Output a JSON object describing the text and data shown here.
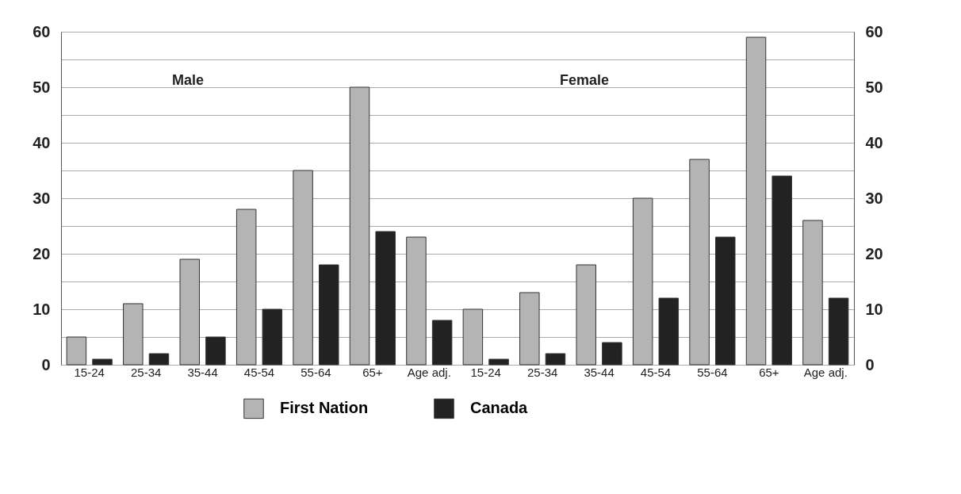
{
  "chart_data": {
    "type": "bar",
    "categories": [
      "15-24",
      "25-34",
      "35-44",
      "45-54",
      "55-64",
      "65+",
      "Age adj.",
      "15-24",
      "25-34",
      "35-44",
      "45-54",
      "55-64",
      "65+",
      "Age adj."
    ],
    "series": [
      {
        "name": "First Nation",
        "color": "#b4b4b4",
        "values": [
          5,
          11,
          19,
          28,
          35,
          50,
          23,
          10,
          13,
          18,
          30,
          37,
          59,
          26
        ]
      },
      {
        "name": "Canada",
        "color": "#222222",
        "values": [
          1,
          2,
          5,
          10,
          18,
          24,
          8,
          1,
          2,
          4,
          12,
          23,
          34,
          12
        ]
      }
    ],
    "annotations": [
      "Male",
      "Female"
    ],
    "ylim": [
      0,
      60
    ],
    "yticks": [
      0,
      {
        "value": 5,
        "label": null
      },
      10,
      {
        "value": 15,
        "label": null
      },
      20,
      {
        "value": 25,
        "label": null
      },
      30,
      {
        "value": 35,
        "label": null
      },
      40,
      {
        "value": 45,
        "label": null
      },
      50,
      {
        "value": 55,
        "label": null
      },
      60
    ],
    "y2lim": [
      0,
      60
    ],
    "y2ticks": [
      0,
      10,
      20,
      30,
      40,
      50,
      60
    ],
    "grid": "y",
    "legend": "bottom"
  }
}
